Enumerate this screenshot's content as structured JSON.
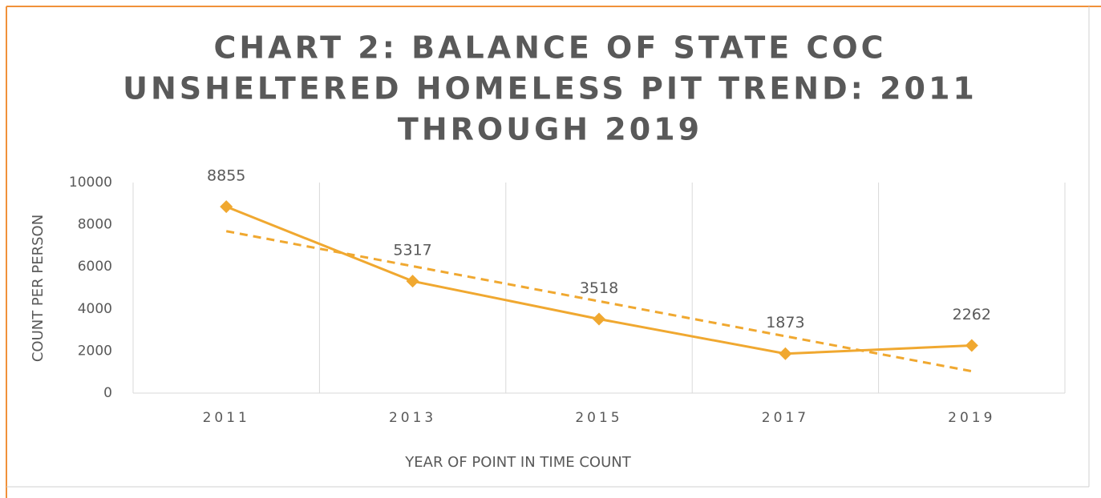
{
  "chart_data": {
    "type": "line",
    "title": [
      "CHART 2: BALANCE OF STATE COC",
      "UNSHELTERED HOMELESS PIT TREND: 2011",
      "THROUGH 2019"
    ],
    "categories": [
      "2011",
      "2013",
      "2015",
      "2017",
      "2019"
    ],
    "values": [
      8855,
      5317,
      3518,
      1873,
      2262
    ],
    "color": "#f0a830",
    "trendline": true,
    "xlabel": "YEAR OF POINT IN TIME COUNT",
    "ylabel": "COUNT PER PERSON",
    "ylim": [
      0,
      10000
    ],
    "yticks": [
      0,
      2000,
      4000,
      6000,
      8000,
      10000
    ]
  }
}
